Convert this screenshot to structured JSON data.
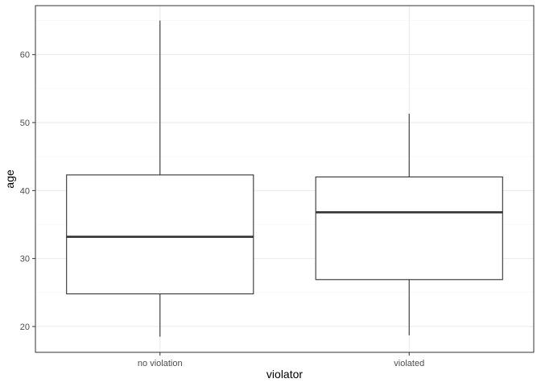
{
  "chart_data": {
    "type": "box",
    "xlabel": "violator",
    "ylabel": "age",
    "categories": [
      "no violation",
      "violated"
    ],
    "ylim": [
      16.2,
      67.2
    ],
    "y_ticks": [
      20,
      30,
      40,
      50,
      60
    ],
    "grid": true,
    "boxes": [
      {
        "category": "no violation",
        "min": 18.5,
        "q1": 24.8,
        "median": 33.2,
        "q3": 42.3,
        "max": 65.0
      },
      {
        "category": "violated",
        "min": 18.7,
        "q1": 26.9,
        "median": 36.8,
        "q3": 42.0,
        "max": 51.3
      }
    ],
    "colors": {
      "box_fill": "#ffffff",
      "box_stroke": "#333333",
      "grid_major": "#ebebeb",
      "grid_minor": "#f5f5f5",
      "panel_border": "#333333"
    }
  }
}
